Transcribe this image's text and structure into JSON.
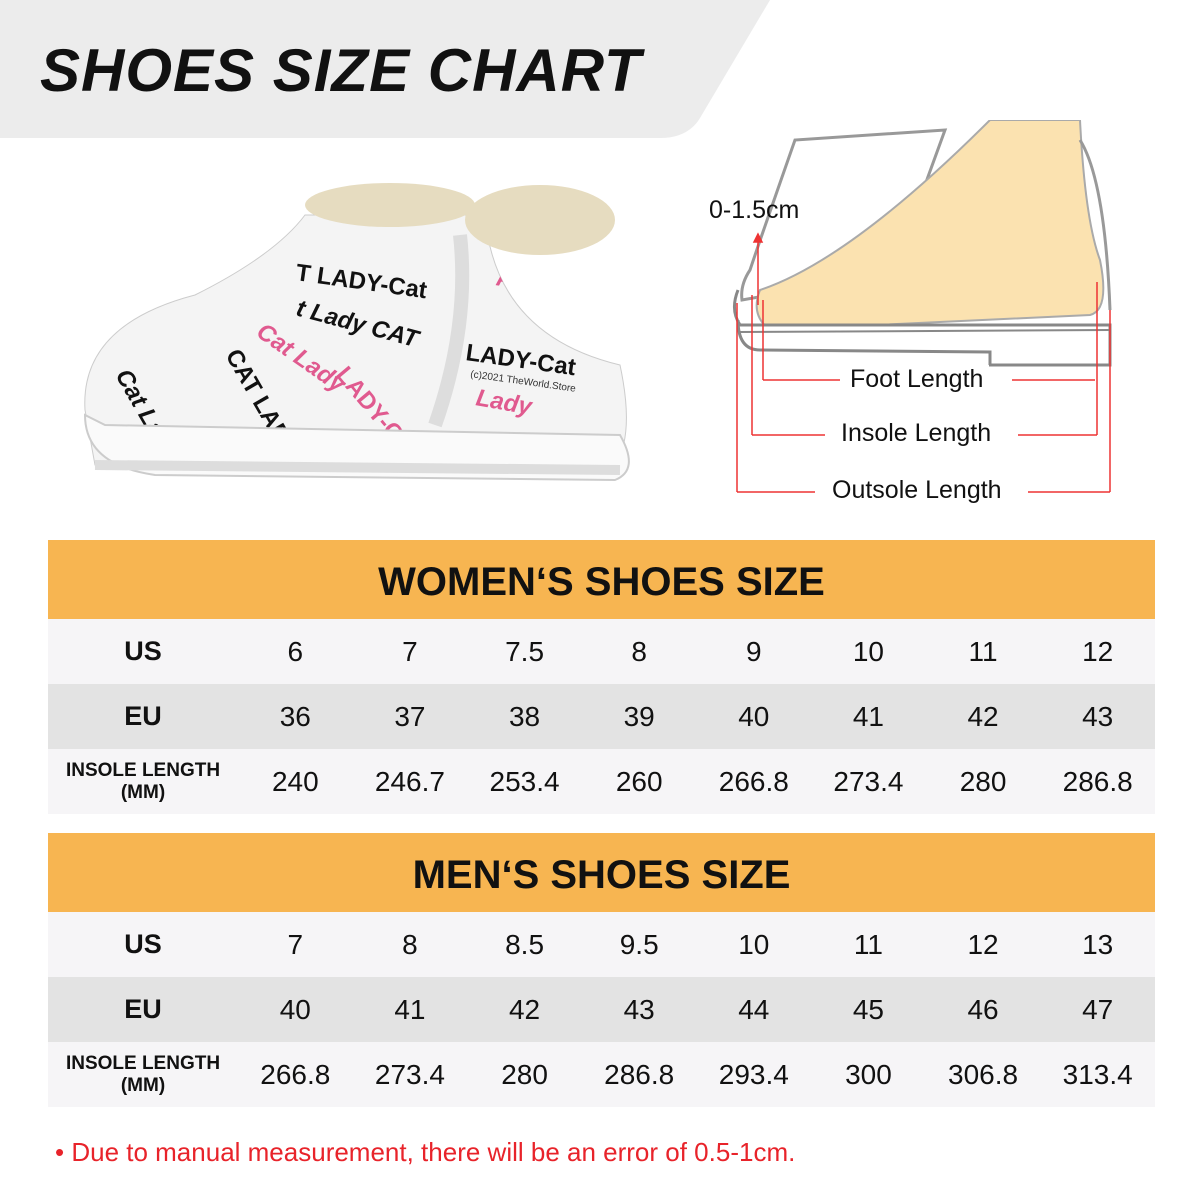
{
  "title": "SHOES SIZE CHART",
  "colors": {
    "header": "#f7b551",
    "note": "#e8232a",
    "banner": "#ececec"
  },
  "diagram": {
    "toe_gap": "0-1.5cm",
    "foot_length": "Foot Length",
    "insole_length": "Insole Length",
    "outsole_length": "Outsole Length"
  },
  "women": {
    "title": "WOMEN‘S SHOES SIZE",
    "rows": [
      {
        "label": "US",
        "values": [
          "6",
          "7",
          "7.5",
          "8",
          "9",
          "10",
          "11",
          "12"
        ]
      },
      {
        "label": "EU",
        "values": [
          "36",
          "37",
          "38",
          "39",
          "40",
          "41",
          "42",
          "43"
        ]
      },
      {
        "label": "INSOLE LENGTH",
        "label2": "(MM)",
        "values": [
          "240",
          "246.7",
          "253.4",
          "260",
          "266.8",
          "273.4",
          "280",
          "286.8"
        ]
      }
    ]
  },
  "men": {
    "title": "MEN‘S SHOES SIZE",
    "rows": [
      {
        "label": "US",
        "values": [
          "7",
          "8",
          "8.5",
          "9.5",
          "10",
          "11",
          "12",
          "13"
        ]
      },
      {
        "label": "EU",
        "values": [
          "40",
          "41",
          "42",
          "43",
          "44",
          "45",
          "46",
          "47"
        ]
      },
      {
        "label": "INSOLE LENGTH",
        "label2": "(MM)",
        "values": [
          "266.8",
          "273.4",
          "280",
          "286.8",
          "293.4",
          "300",
          "306.8",
          "313.4"
        ]
      }
    ]
  },
  "note": "• Due to manual measurement, there will be an error of 0.5-1cm.",
  "shoe_print": [
    "CAT LADY-",
    "Cat Lady",
    "CAT LADY-Cat",
    "Cat Lady",
    "(c)2021 TheWorld.Store"
  ]
}
